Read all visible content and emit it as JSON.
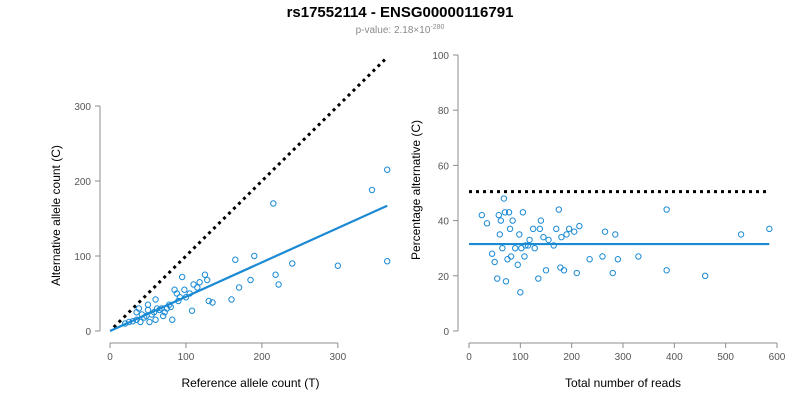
{
  "header": {
    "title": "rs17552114 - ENSG00000116791",
    "pvalue_prefix": "p-value: 2.18×10",
    "pvalue_exponent": "-280"
  },
  "colors": {
    "points": "#1a8ad4",
    "fit_line": "#1a8ad4",
    "reference_line": "#000000",
    "axis": "#8c8c8c"
  },
  "chart_data": [
    {
      "type": "scatter",
      "title": "",
      "xlabel": "Reference allele count (T)",
      "ylabel": "Alternative allele count (C)",
      "xlim": [
        0,
        370
      ],
      "ylim": [
        0,
        300
      ],
      "x_ticks": [
        0,
        100,
        200,
        300
      ],
      "y_ticks": [
        0,
        100,
        200,
        300
      ],
      "grid": false,
      "reference_line": {
        "style": "dotted",
        "from": [
          5,
          5
        ],
        "to": [
          365,
          365
        ]
      },
      "fit_line": {
        "from": [
          0,
          0
        ],
        "to": [
          365,
          167
        ]
      },
      "points": [
        {
          "x": 20,
          "y": 10
        },
        {
          "x": 25,
          "y": 12
        },
        {
          "x": 30,
          "y": 13
        },
        {
          "x": 35,
          "y": 15
        },
        {
          "x": 35,
          "y": 25
        },
        {
          "x": 38,
          "y": 30
        },
        {
          "x": 40,
          "y": 12
        },
        {
          "x": 42,
          "y": 22
        },
        {
          "x": 45,
          "y": 18
        },
        {
          "x": 48,
          "y": 20
        },
        {
          "x": 50,
          "y": 28
        },
        {
          "x": 50,
          "y": 35
        },
        {
          "x": 52,
          "y": 12
        },
        {
          "x": 55,
          "y": 22
        },
        {
          "x": 58,
          "y": 25
        },
        {
          "x": 60,
          "y": 15
        },
        {
          "x": 60,
          "y": 42
        },
        {
          "x": 62,
          "y": 30
        },
        {
          "x": 65,
          "y": 28
        },
        {
          "x": 68,
          "y": 30
        },
        {
          "x": 70,
          "y": 20
        },
        {
          "x": 72,
          "y": 25
        },
        {
          "x": 75,
          "y": 30
        },
        {
          "x": 78,
          "y": 35
        },
        {
          "x": 80,
          "y": 32
        },
        {
          "x": 82,
          "y": 15
        },
        {
          "x": 85,
          "y": 55
        },
        {
          "x": 88,
          "y": 50
        },
        {
          "x": 90,
          "y": 40
        },
        {
          "x": 92,
          "y": 45
        },
        {
          "x": 95,
          "y": 72
        },
        {
          "x": 98,
          "y": 55
        },
        {
          "x": 100,
          "y": 45
        },
        {
          "x": 105,
          "y": 50
        },
        {
          "x": 108,
          "y": 27
        },
        {
          "x": 110,
          "y": 62
        },
        {
          "x": 115,
          "y": 58
        },
        {
          "x": 118,
          "y": 65
        },
        {
          "x": 125,
          "y": 75
        },
        {
          "x": 128,
          "y": 68
        },
        {
          "x": 130,
          "y": 40
        },
        {
          "x": 135,
          "y": 38
        },
        {
          "x": 160,
          "y": 42
        },
        {
          "x": 165,
          "y": 95
        },
        {
          "x": 170,
          "y": 58
        },
        {
          "x": 185,
          "y": 68
        },
        {
          "x": 190,
          "y": 100
        },
        {
          "x": 215,
          "y": 170
        },
        {
          "x": 218,
          "y": 75
        },
        {
          "x": 222,
          "y": 62
        },
        {
          "x": 240,
          "y": 90
        },
        {
          "x": 300,
          "y": 87
        },
        {
          "x": 345,
          "y": 188
        },
        {
          "x": 365,
          "y": 215
        },
        {
          "x": 365,
          "y": 93
        }
      ]
    },
    {
      "type": "scatter",
      "title": "",
      "xlabel": "Total number of reads",
      "ylabel": "Percentage alternative (C)",
      "xlim": [
        0,
        600
      ],
      "ylim": [
        0,
        100
      ],
      "x_ticks": [
        0,
        100,
        200,
        300,
        400,
        500,
        600
      ],
      "y_ticks": [
        0,
        20,
        40,
        60,
        80,
        100
      ],
      "grid": false,
      "reference_line": {
        "style": "dotted",
        "from": [
          0,
          50.5
        ],
        "to": [
          585,
          50.5
        ]
      },
      "fit_line": {
        "from": [
          0,
          31.5
        ],
        "to": [
          585,
          31.5
        ]
      },
      "points": [
        {
          "x": 25,
          "y": 42
        },
        {
          "x": 35,
          "y": 39
        },
        {
          "x": 45,
          "y": 28
        },
        {
          "x": 50,
          "y": 25
        },
        {
          "x": 55,
          "y": 19
        },
        {
          "x": 58,
          "y": 42
        },
        {
          "x": 60,
          "y": 35
        },
        {
          "x": 62,
          "y": 40
        },
        {
          "x": 65,
          "y": 30
        },
        {
          "x": 68,
          "y": 48
        },
        {
          "x": 70,
          "y": 43
        },
        {
          "x": 72,
          "y": 18
        },
        {
          "x": 75,
          "y": 26
        },
        {
          "x": 78,
          "y": 43
        },
        {
          "x": 80,
          "y": 37
        },
        {
          "x": 82,
          "y": 27
        },
        {
          "x": 85,
          "y": 40
        },
        {
          "x": 90,
          "y": 30
        },
        {
          "x": 95,
          "y": 24
        },
        {
          "x": 98,
          "y": 35
        },
        {
          "x": 100,
          "y": 14
        },
        {
          "x": 102,
          "y": 30
        },
        {
          "x": 105,
          "y": 43
        },
        {
          "x": 108,
          "y": 27
        },
        {
          "x": 110,
          "y": 31
        },
        {
          "x": 115,
          "y": 31
        },
        {
          "x": 118,
          "y": 33
        },
        {
          "x": 125,
          "y": 37
        },
        {
          "x": 128,
          "y": 30
        },
        {
          "x": 135,
          "y": 19
        },
        {
          "x": 138,
          "y": 37
        },
        {
          "x": 140,
          "y": 40
        },
        {
          "x": 145,
          "y": 34
        },
        {
          "x": 150,
          "y": 22
        },
        {
          "x": 155,
          "y": 33
        },
        {
          "x": 165,
          "y": 31
        },
        {
          "x": 170,
          "y": 37
        },
        {
          "x": 175,
          "y": 44
        },
        {
          "x": 178,
          "y": 23
        },
        {
          "x": 180,
          "y": 34
        },
        {
          "x": 185,
          "y": 22
        },
        {
          "x": 190,
          "y": 35
        },
        {
          "x": 195,
          "y": 37
        },
        {
          "x": 205,
          "y": 36
        },
        {
          "x": 210,
          "y": 21
        },
        {
          "x": 215,
          "y": 38
        },
        {
          "x": 235,
          "y": 26
        },
        {
          "x": 260,
          "y": 27
        },
        {
          "x": 265,
          "y": 36
        },
        {
          "x": 280,
          "y": 21
        },
        {
          "x": 285,
          "y": 35
        },
        {
          "x": 290,
          "y": 26
        },
        {
          "x": 330,
          "y": 27
        },
        {
          "x": 385,
          "y": 44
        },
        {
          "x": 385,
          "y": 22
        },
        {
          "x": 460,
          "y": 20
        },
        {
          "x": 530,
          "y": 35
        },
        {
          "x": 585,
          "y": 37
        }
      ]
    }
  ]
}
